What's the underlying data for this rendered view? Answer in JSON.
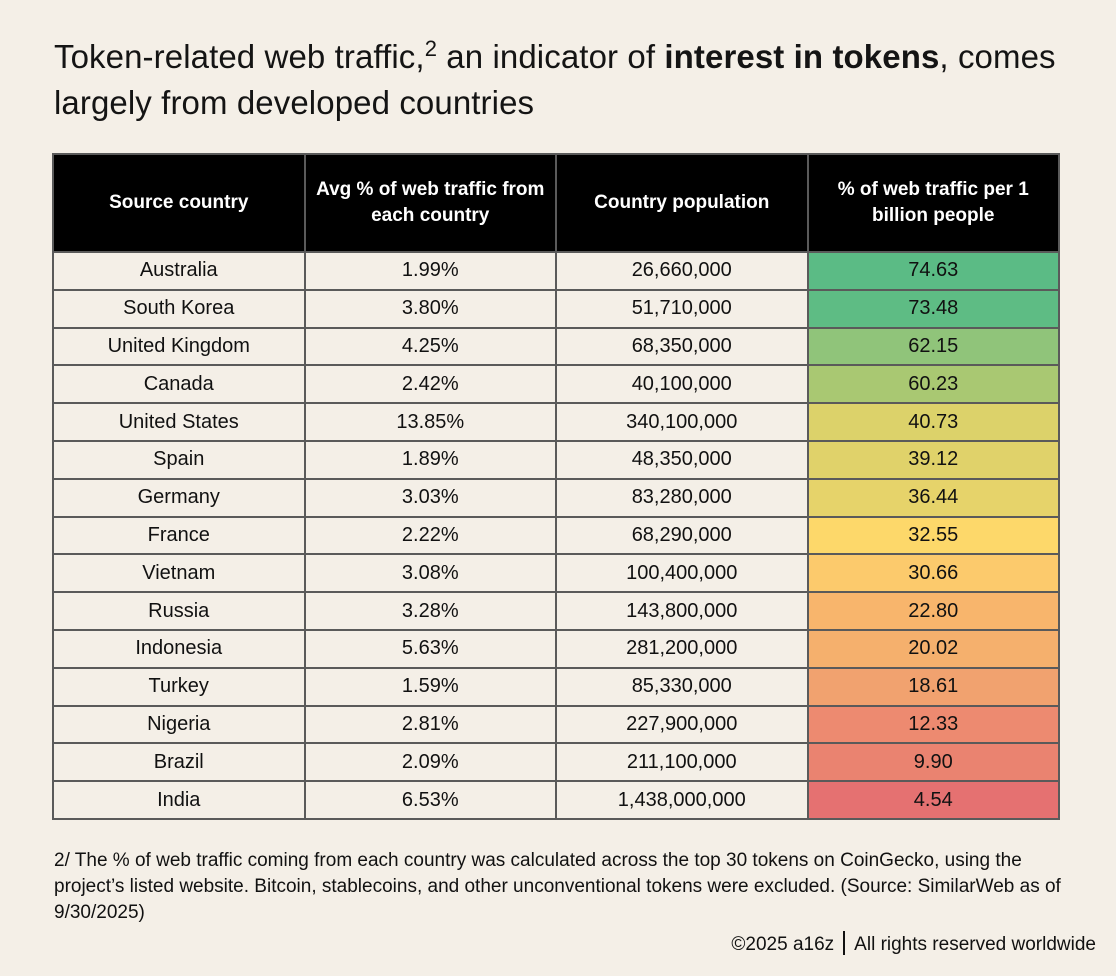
{
  "title": {
    "part1": "Token-related web traffic,",
    "footnote_mark": "2",
    "part2": " an indicator of ",
    "bold": "interest in tokens",
    "part3": ", comes largely from developed countries"
  },
  "chart_data": {
    "type": "table",
    "columns": [
      "Source country",
      "Avg % of web traffic from each country",
      "Country population",
      "% of web traffic per 1 billion people"
    ],
    "rows": [
      {
        "country": "Australia",
        "avg_traffic": "1.99%",
        "population": "26,660,000",
        "per_billion": "74.63",
        "color": "#5bbb85"
      },
      {
        "country": "South Korea",
        "avg_traffic": "3.80%",
        "population": "51,710,000",
        "per_billion": "73.48",
        "color": "#5ebc84"
      },
      {
        "country": "United Kingdom",
        "avg_traffic": "4.25%",
        "population": "68,350,000",
        "per_billion": "62.15",
        "color": "#90c47a"
      },
      {
        "country": "Canada",
        "avg_traffic": "2.42%",
        "population": "40,100,000",
        "per_billion": "60.23",
        "color": "#a9c872"
      },
      {
        "country": "United States",
        "avg_traffic": "13.85%",
        "population": "340,100,000",
        "per_billion": "40.73",
        "color": "#dcd26a"
      },
      {
        "country": "Spain",
        "avg_traffic": "1.89%",
        "population": "48,350,000",
        "per_billion": "39.12",
        "color": "#e0d26a"
      },
      {
        "country": "Germany",
        "avg_traffic": "3.03%",
        "population": "83,280,000",
        "per_billion": "36.44",
        "color": "#e6d36a"
      },
      {
        "country": "France",
        "avg_traffic": "2.22%",
        "population": "68,290,000",
        "per_billion": "32.55",
        "color": "#fdd86a"
      },
      {
        "country": "Vietnam",
        "avg_traffic": "3.08%",
        "population": "100,400,000",
        "per_billion": "30.66",
        "color": "#fcca6c"
      },
      {
        "country": "Russia",
        "avg_traffic": "3.28%",
        "population": "143,800,000",
        "per_billion": "22.80",
        "color": "#f8b56c"
      },
      {
        "country": "Indonesia",
        "avg_traffic": "5.63%",
        "population": "281,200,000",
        "per_billion": "20.02",
        "color": "#f5b06d"
      },
      {
        "country": "Turkey",
        "avg_traffic": "1.59%",
        "population": "85,330,000",
        "per_billion": "18.61",
        "color": "#f1a26f"
      },
      {
        "country": "Nigeria",
        "avg_traffic": "2.81%",
        "population": "227,900,000",
        "per_billion": "12.33",
        "color": "#ed8a70"
      },
      {
        "country": "Brazil",
        "avg_traffic": "2.09%",
        "population": "211,100,000",
        "per_billion": "9.90",
        "color": "#ea8370"
      },
      {
        "country": "India",
        "avg_traffic": "6.53%",
        "population": "1,438,000,000",
        "per_billion": "4.54",
        "color": "#e57171"
      }
    ]
  },
  "footnote": "2/ The % of web traffic coming from each country was calculated across the top 30 tokens on CoinGecko, using the project’s listed website. Bitcoin, stablecoins, and other unconventional tokens were excluded. (Source: SimilarWeb as of 9/30/2025)",
  "credit": {
    "left": "©2025 a16z",
    "right": "All rights reserved worldwide"
  }
}
